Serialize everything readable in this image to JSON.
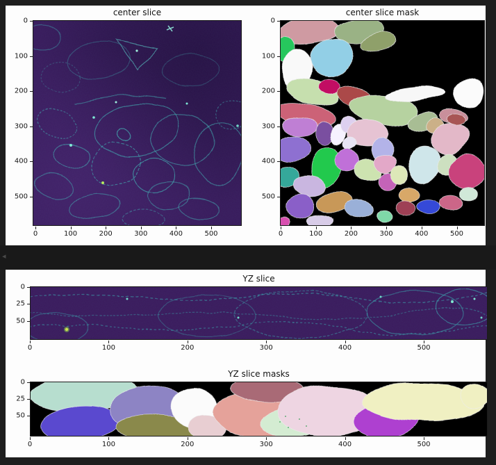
{
  "page": {
    "background": "#1e1e1e",
    "figure_background": "#fdfdfd",
    "scroll_chevron": "◂"
  },
  "chart_data": [
    {
      "type": "heatmap",
      "title": "center slice",
      "xlabel": "",
      "ylabel": "",
      "xtick_labels": [
        "0",
        "100",
        "200",
        "300",
        "400",
        "500"
      ],
      "ytick_labels": [
        "0",
        "100",
        "200",
        "300",
        "400",
        "500"
      ],
      "xlim": [
        0,
        585
      ],
      "ylim": [
        585,
        0
      ],
      "grid": false,
      "legend": "none",
      "colormap": "viridis",
      "description": "XY center slice of a 3D microscopy volume: dark purple background, teal cell-boundary signal forming a cluster of cell outlines, a few bright spots",
      "colors": {
        "background": "#38195b",
        "boundary": "#41b0b4",
        "bright_spot": "#b8e85a"
      }
    },
    {
      "type": "heatmap",
      "title": "center slice mask",
      "xlabel": "",
      "ylabel": "",
      "xtick_labels": [
        "0",
        "100",
        "200",
        "300",
        "400",
        "500"
      ],
      "ytick_labels": [
        "0",
        "100",
        "200",
        "300",
        "400",
        "500"
      ],
      "xlim": [
        0,
        585
      ],
      "ylim": [
        585,
        0
      ],
      "grid": false,
      "legend": "none",
      "background": "#000000",
      "description": "instance-segmentation mask of the center slice: ~45 pastel colored cell regions with light outlines on black; upper-right area unlabeled (black)",
      "palette": [
        "#cf9aa2",
        "#9ab285",
        "#8fa06a",
        "#25c75d",
        "#f9f9f9",
        "#92cfe6",
        "#c6dfae",
        "#c20f63",
        "#ab4a4a",
        "#cc6277",
        "#b6d2a0",
        "#f7f7f7",
        "#c98f9b",
        "#a8bd94",
        "#bf7fd4",
        "#8e6fd1",
        "#e6c3d3",
        "#22c94e",
        "#c06fd8",
        "#35a89a",
        "#c9b6e0",
        "#cde3b0",
        "#e3a8c8",
        "#c463b8",
        "#dde8b8",
        "#d8a868",
        "#cfe6ea",
        "#e3b8c8",
        "#c9437c",
        "#8a5fc8",
        "#c89858",
        "#9ab0d8",
        "#7fd8a8",
        "#9e3f55",
        "#3548d8",
        "#cc6688",
        "#d84fb0"
      ]
    },
    {
      "type": "heatmap",
      "title": "YZ slice",
      "xlabel": "",
      "ylabel": "",
      "xtick_labels": [
        "0",
        "100",
        "200",
        "300",
        "400",
        "500"
      ],
      "ytick_labels": [
        "0",
        "25",
        "50"
      ],
      "xlim": [
        0,
        580
      ],
      "ylim": [
        68,
        0
      ],
      "grid": false,
      "legend": "none",
      "colormap": "viridis",
      "description": "orthogonal YZ slice: thin dark-purple band with wavy dotted teal boundary lines, one bright yellow-green spot at left and brighter teal region at right",
      "colors": {
        "background": "#3a195c",
        "boundary": "#3aa8b0",
        "bright_spot": "#cde04a"
      }
    },
    {
      "type": "heatmap",
      "title": "YZ slice masks",
      "xlabel": "",
      "ylabel": "",
      "xtick_labels": [
        "0",
        "100",
        "200",
        "300",
        "400",
        "500"
      ],
      "ytick_labels": [
        "0",
        "25",
        "50"
      ],
      "xlim": [
        0,
        580
      ],
      "ylim": [
        68,
        0
      ],
      "grid": false,
      "legend": "none",
      "background": "#000000",
      "description": "instance-segmentation of YZ slice: ~13 large colored regions (mint, indigo, slate purple, olive, white, salmon, dark rose, pale pink, magenta-purple, pale yellow) on black",
      "palette": [
        "#b7decf",
        "#5a49cf",
        "#8d84c4",
        "#8a894c",
        "#fbfbfb",
        "#e8ced2",
        "#e5a29a",
        "#a96a76",
        "#d4ecd2",
        "#eed5e2",
        "#ae3fd0",
        "#f0f0c2"
      ]
    }
  ]
}
